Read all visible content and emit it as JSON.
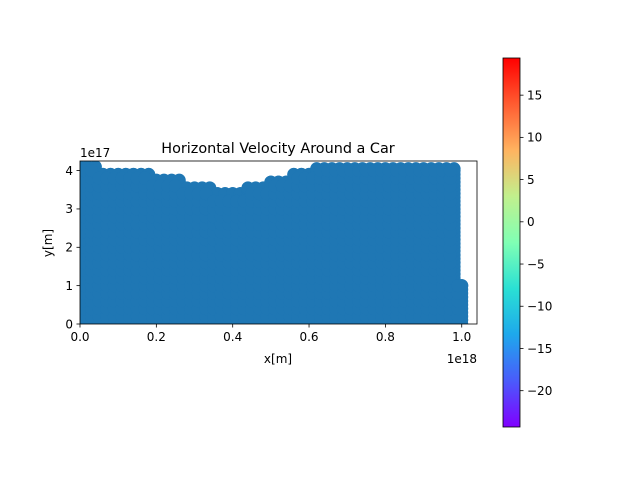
{
  "chart_data": {
    "type": "scatter",
    "title": "Horizontal Velocity Around a Car",
    "xlabel": "x[m]",
    "ylabel": "y[m]",
    "x_offset_label": "1e18",
    "y_offset_label": "1e17",
    "xlim": [
      0,
      1.04
    ],
    "ylim": [
      0,
      4.25
    ],
    "x_ticks": [
      0,
      0.2,
      0.4,
      0.6,
      0.8,
      1.0
    ],
    "x_tick_labels": [
      "0.0",
      "0.2",
      "0.4",
      "0.6",
      "0.8",
      "1.0"
    ],
    "y_ticks": [
      0,
      1,
      2,
      3,
      4
    ],
    "y_tick_labels": [
      "0",
      "1",
      "2",
      "3",
      "4"
    ],
    "marker_color": "#1f77b4",
    "grid": false,
    "series": [
      {
        "note_hidden": "",
        "x": [
          0.0,
          0.02,
          0.04,
          0.06,
          0.08,
          0.1,
          0.12,
          0.14,
          0.16,
          0.18,
          0.2,
          0.22,
          0.24,
          0.26,
          0.28,
          0.3,
          0.32,
          0.34,
          0.36,
          0.38,
          0.4,
          0.42,
          0.44,
          0.46,
          0.48,
          0.5,
          0.52,
          0.54,
          0.56,
          0.58,
          0.6,
          0.62,
          0.64,
          0.66,
          0.68,
          0.7,
          0.72,
          0.74,
          0.76,
          0.78,
          0.8,
          0.82,
          0.84,
          0.86,
          0.88,
          0.9,
          0.92,
          0.94,
          0.96,
          0.98,
          1.0
        ],
        "y_top": [
          4.1,
          4.1,
          4.1,
          3.9,
          3.9,
          3.9,
          3.9,
          3.9,
          3.9,
          3.9,
          3.75,
          3.75,
          3.75,
          3.75,
          3.55,
          3.55,
          3.55,
          3.55,
          3.4,
          3.4,
          3.4,
          3.4,
          3.55,
          3.55,
          3.55,
          3.7,
          3.7,
          3.7,
          3.9,
          3.9,
          3.9,
          4.05,
          4.05,
          4.05,
          4.05,
          4.05,
          4.05,
          4.05,
          4.05,
          4.05,
          4.05,
          4.05,
          4.05,
          4.05,
          4.05,
          4.05,
          4.05,
          4.05,
          4.05,
          4.05,
          1.0
        ]
      }
    ],
    "colorbar": {
      "colormap": "rainbow",
      "vmin": -24.3,
      "vmax": 19.4,
      "ticks": [
        15,
        10,
        5,
        0,
        -5,
        -10,
        -15,
        -20
      ],
      "tick_labels": [
        "15",
        "10",
        "5",
        "0",
        "−5",
        "−10",
        "−15",
        "−20"
      ]
    }
  }
}
